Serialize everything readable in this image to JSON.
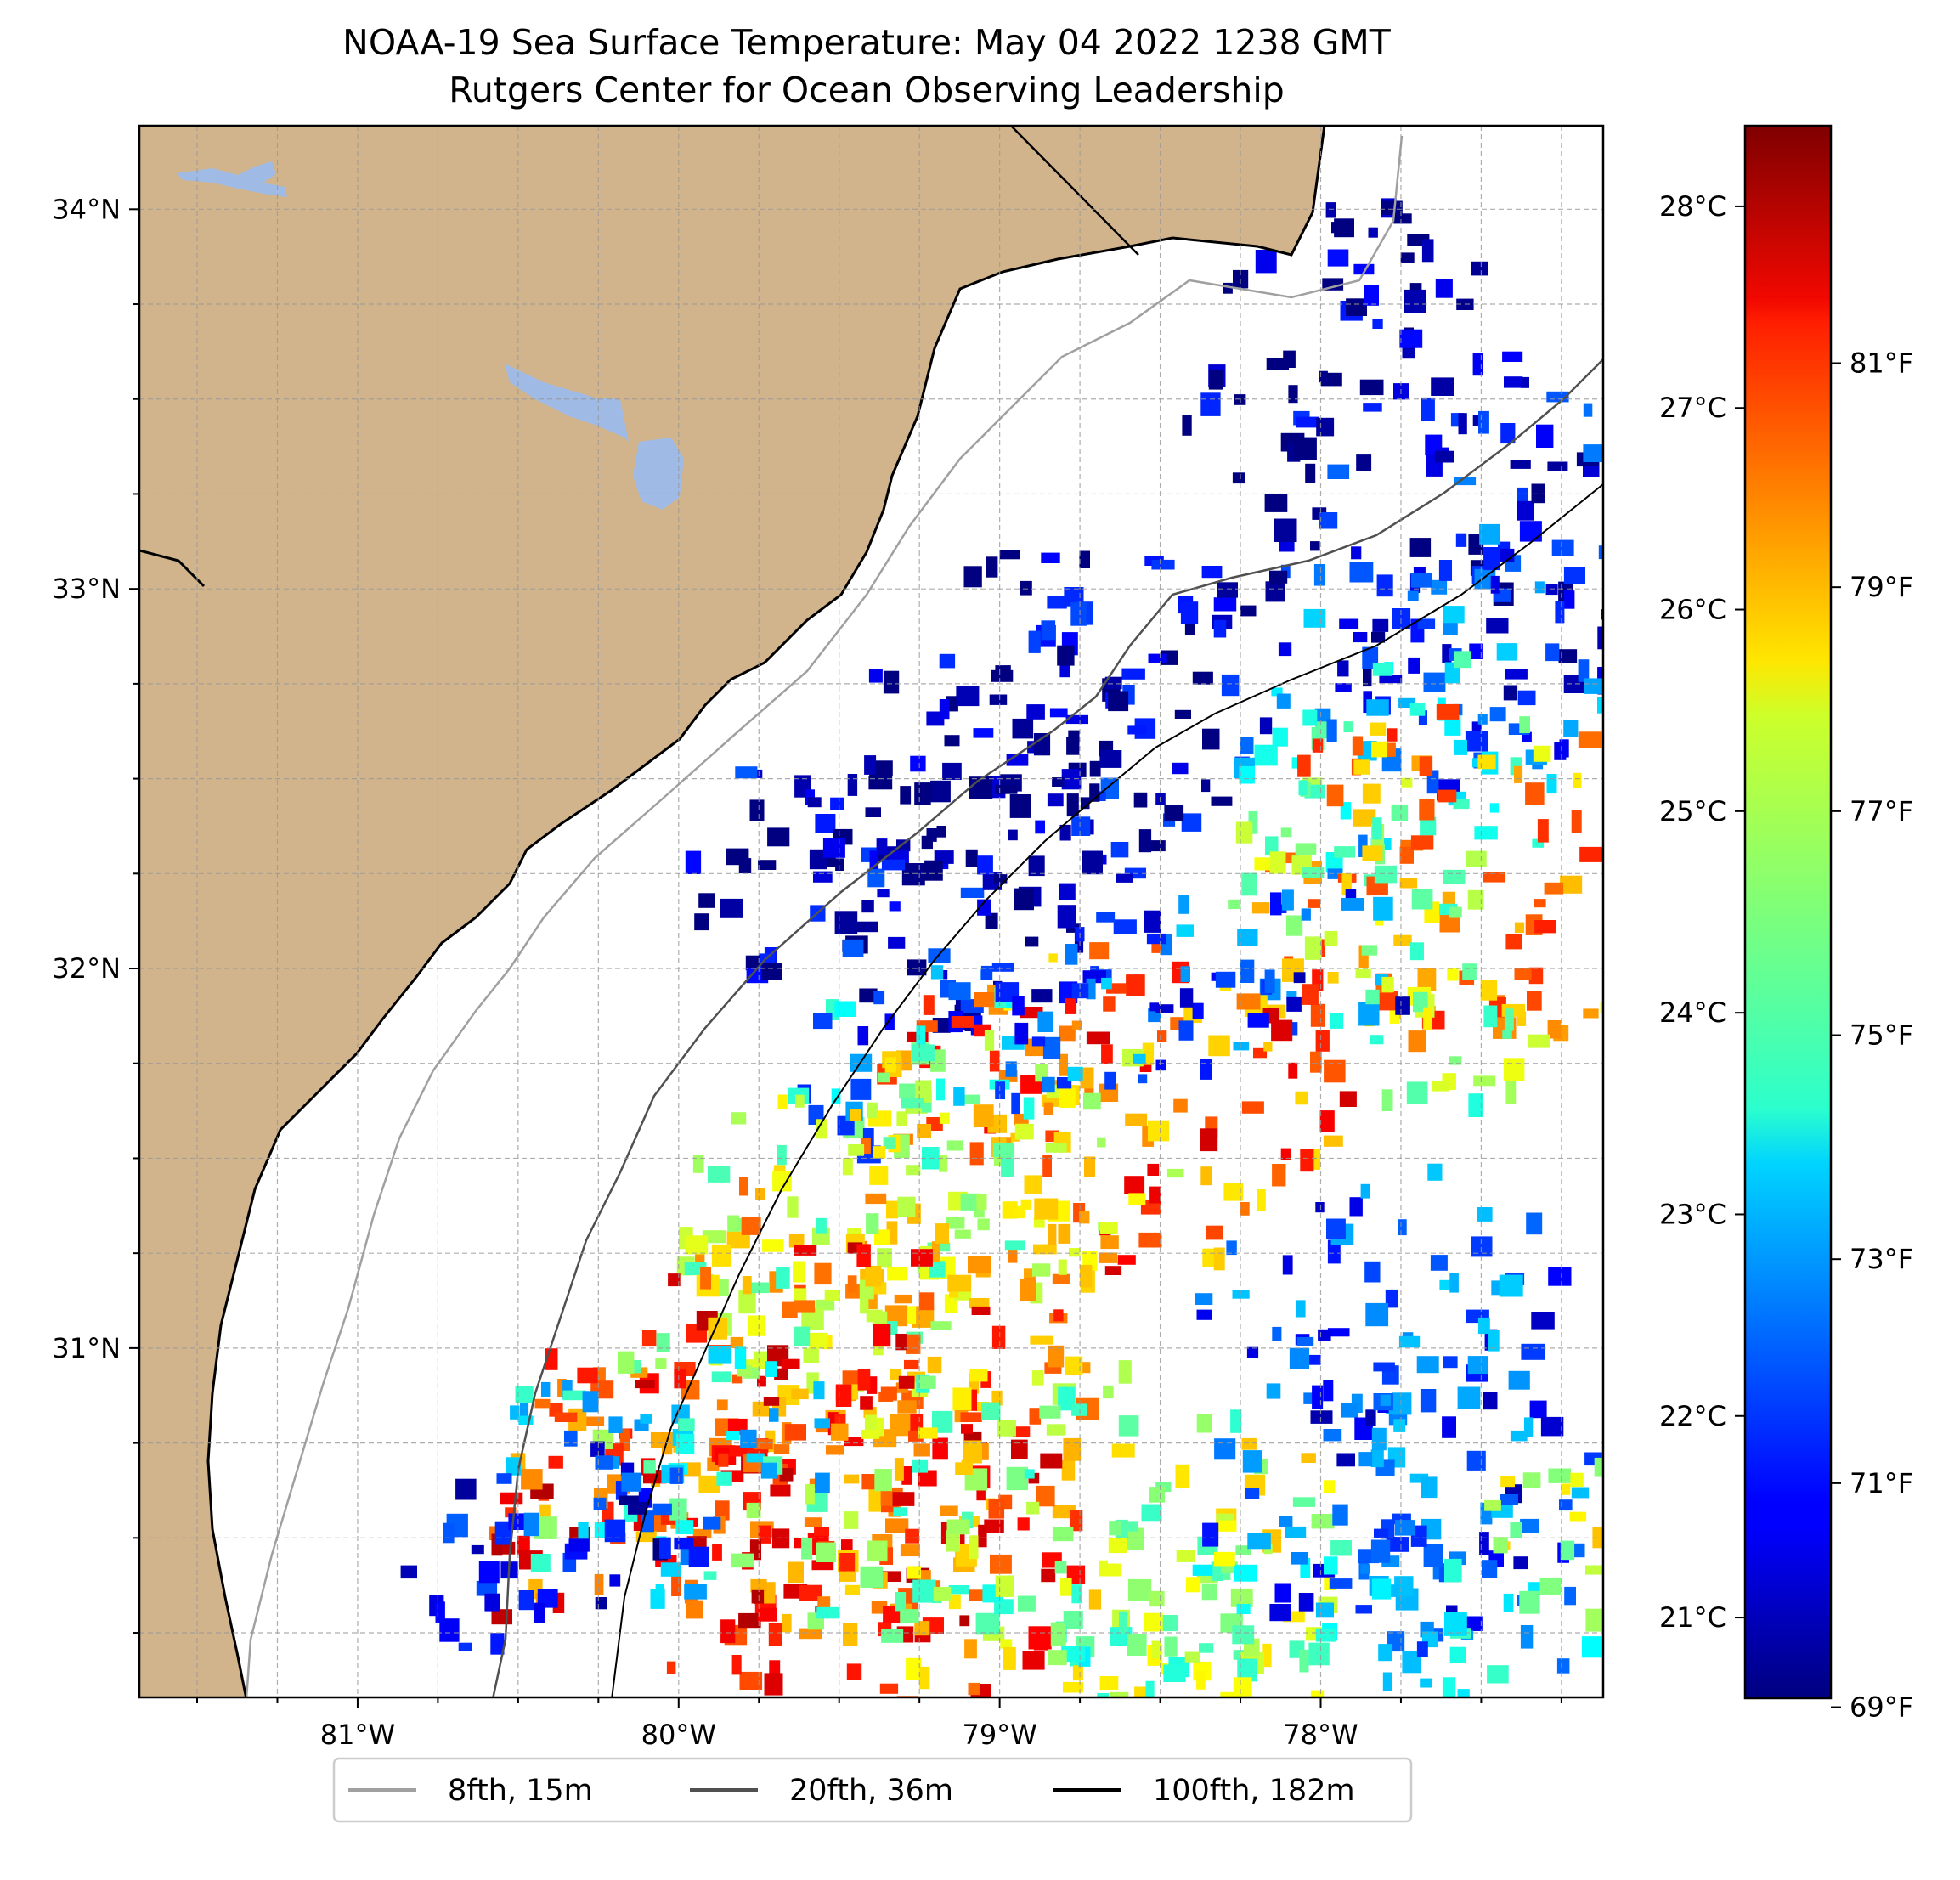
{
  "title": {
    "line1": "NOAA-19 Sea Surface Temperature: May 04 2022 1238 GMT",
    "line2": "Rutgers Center for Ocean Observing Leadership"
  },
  "map": {
    "lon_range": [
      -81.68,
      -77.12
    ],
    "lat_range": [
      30.08,
      34.22
    ],
    "lon_ticks": [
      {
        "value": -81,
        "label": "81°W"
      },
      {
        "value": -80,
        "label": "80°W"
      },
      {
        "value": -79,
        "label": "79°W"
      },
      {
        "value": -78,
        "label": "78°W"
      }
    ],
    "lat_ticks": [
      {
        "value": 34,
        "label": "34°N"
      },
      {
        "value": 33,
        "label": "33°N"
      },
      {
        "value": 32,
        "label": "32°N"
      },
      {
        "value": 31,
        "label": "31°N"
      }
    ],
    "land_color": "#d2b48c",
    "lake_color": "#9fbbe5",
    "grid": true
  },
  "colorbar": {
    "colormap": "jet",
    "celsius_range": [
      20.6,
      28.4
    ],
    "celsius_ticks": [
      {
        "value": 21,
        "label": "21°C"
      },
      {
        "value": 22,
        "label": "22°C"
      },
      {
        "value": 23,
        "label": "23°C"
      },
      {
        "value": 24,
        "label": "24°C"
      },
      {
        "value": 25,
        "label": "25°C"
      },
      {
        "value": 26,
        "label": "26°C"
      },
      {
        "value": 27,
        "label": "27°C"
      },
      {
        "value": 28,
        "label": "28°C"
      }
    ],
    "fahrenheit_ticks": [
      {
        "value": 69,
        "label": "69°F"
      },
      {
        "value": 71,
        "label": "71°F"
      },
      {
        "value": 73,
        "label": "73°F"
      },
      {
        "value": 75,
        "label": "75°F"
      },
      {
        "value": 77,
        "label": "77°F"
      },
      {
        "value": 79,
        "label": "79°F"
      },
      {
        "value": 81,
        "label": "81°F"
      }
    ]
  },
  "legend": {
    "placement": "bottom-center",
    "items": [
      {
        "label": "8fth, 15m",
        "color": "#a0a0a0"
      },
      {
        "label": "20fth, 36m",
        "color": "#505050"
      },
      {
        "label": "100fth, 182m",
        "color": "#000000"
      }
    ]
  }
}
